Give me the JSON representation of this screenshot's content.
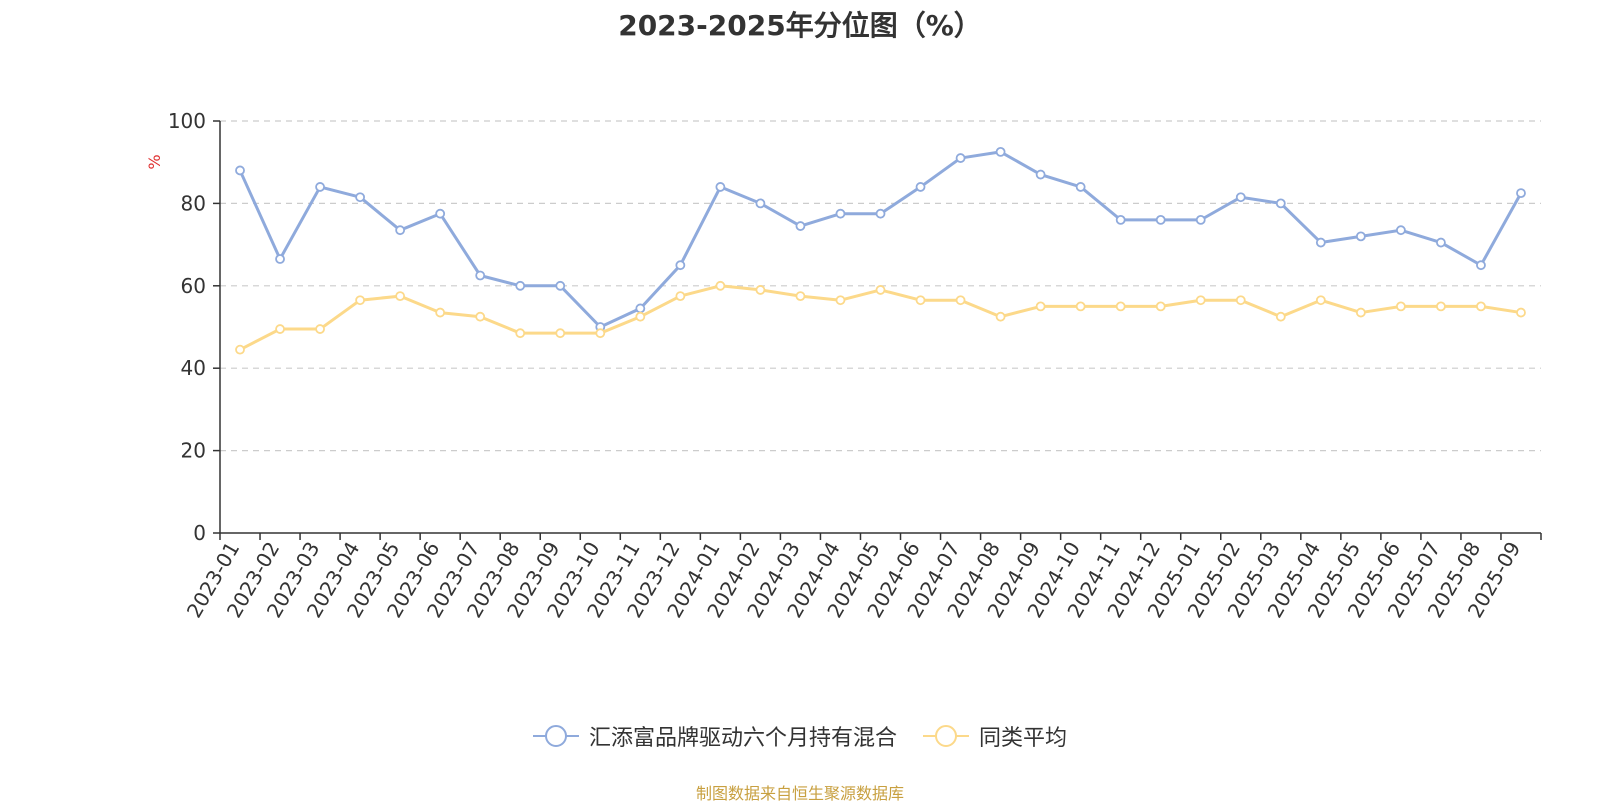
{
  "chart_data": {
    "type": "line",
    "title": "2023-2025年分位图（%）",
    "ylabel": "%",
    "xlabel": "",
    "ylim": [
      0,
      100
    ],
    "yticks": [
      0,
      20,
      40,
      60,
      80,
      100
    ],
    "grid": true,
    "legend_position": "bottom",
    "categories": [
      "2023-01",
      "2023-02",
      "2023-03",
      "2023-04",
      "2023-05",
      "2023-06",
      "2023-07",
      "2023-08",
      "2023-09",
      "2023-10",
      "2023-11",
      "2023-12",
      "2024-01",
      "2024-02",
      "2024-03",
      "2024-04",
      "2024-05",
      "2024-06",
      "2024-07",
      "2024-08",
      "2024-09",
      "2024-10",
      "2024-11",
      "2024-12",
      "2025-01",
      "2025-02",
      "2025-03",
      "2025-04",
      "2025-05",
      "2025-06",
      "2025-07",
      "2025-08",
      "2025-09"
    ],
    "series": [
      {
        "name": "汇添富品牌驱动六个月持有混合",
        "color": "#8faadc",
        "values": [
          88,
          66.5,
          84,
          81.5,
          73.5,
          77.5,
          62.5,
          60,
          60,
          50,
          54.5,
          65,
          84,
          80,
          74.5,
          77.5,
          77.5,
          84,
          91,
          92.5,
          87,
          84,
          76,
          76,
          76,
          81.5,
          80,
          70.5,
          72,
          73.5,
          70.5,
          65,
          82.5
        ]
      },
      {
        "name": "同类平均",
        "color": "#fcd98a",
        "values": [
          44.5,
          49.5,
          49.5,
          56.5,
          57.5,
          53.5,
          52.5,
          48.5,
          48.5,
          48.5,
          52.5,
          57.5,
          60,
          59,
          57.5,
          56.5,
          59,
          56.5,
          56.5,
          52.5,
          55,
          55,
          55,
          55,
          56.5,
          56.5,
          52.5,
          56.5,
          53.5,
          55,
          55,
          55,
          53.5
        ]
      }
    ]
  },
  "source_note": "制图数据来自恒生聚源数据库"
}
